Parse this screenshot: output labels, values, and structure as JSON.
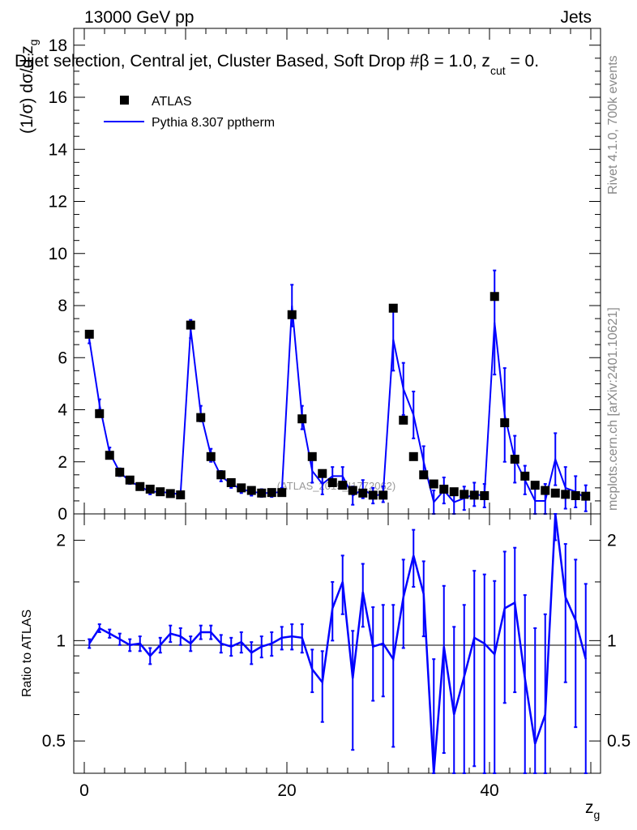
{
  "header": {
    "left": "13000 GeV pp",
    "right": "Jets",
    "selection": "Dijet selection, Central jet, Cluster Based, Soft Drop #beta = 1.0, z_cut = 0."
  },
  "side_labels": {
    "rivet": "Rivet 4.1.0,  700k events",
    "mcplots": "mcplots.cern.ch [arXiv:2401.10621]"
  },
  "watermark": "(ATLAS_2019_I1772062)",
  "axes": {
    "main_ylabel": "(1/σ) dσ/d z_g",
    "ratio_ylabel": "Ratio to ATLAS",
    "xlabel": "z_g"
  },
  "legend": [
    {
      "label": "ATLAS",
      "marker": "square",
      "color": "#000000"
    },
    {
      "label": "Pythia 8.307 pptherm",
      "marker": "line",
      "color": "#0000ff"
    }
  ],
  "chart_data": [
    {
      "type": "scatter+line",
      "panel": "main",
      "xlim": [
        -1,
        51
      ],
      "ylim": [
        0,
        18.8
      ],
      "x_ticks": [
        0,
        20,
        40
      ],
      "y_ticks": [
        0,
        2,
        4,
        6,
        8,
        10,
        12,
        14,
        16,
        18
      ],
      "x": [
        0.5,
        1.5,
        2.5,
        3.5,
        4.5,
        5.5,
        6.5,
        7.5,
        8.5,
        9.5,
        10.5,
        11.5,
        12.5,
        13.5,
        14.5,
        15.5,
        16.5,
        17.5,
        18.5,
        19.5,
        20.5,
        21.5,
        22.5,
        23.5,
        24.5,
        25.5,
        26.5,
        27.5,
        28.5,
        29.5,
        30.5,
        31.5,
        32.5,
        33.5,
        34.5,
        35.5,
        36.5,
        37.5,
        38.5,
        39.5,
        40.5,
        41.5,
        42.5,
        43.5,
        44.5,
        45.5,
        46.5,
        47.5,
        48.5,
        49.5
      ],
      "series": [
        {
          "name": "ATLAS",
          "color": "#000000",
          "values": [
            6.9,
            3.85,
            2.25,
            1.6,
            1.3,
            1.05,
            0.95,
            0.85,
            0.78,
            0.73,
            7.25,
            3.7,
            2.2,
            1.5,
            1.2,
            1.0,
            0.9,
            0.8,
            0.82,
            0.82,
            7.65,
            3.65,
            2.2,
            1.55,
            1.2,
            1.1,
            0.9,
            0.8,
            0.72,
            0.72,
            7.9,
            3.6,
            2.2,
            1.5,
            1.15,
            0.95,
            0.85,
            0.75,
            0.72,
            0.7,
            8.35,
            3.5,
            2.1,
            1.45,
            1.1,
            0.9,
            0.8,
            0.75,
            0.7,
            0.68
          ]
        },
        {
          "name": "Pythia 8.307 pptherm",
          "color": "#0000ff",
          "values": [
            6.7,
            4.2,
            2.35,
            1.6,
            1.25,
            1.05,
            0.85,
            0.85,
            0.8,
            0.75,
            7.1,
            3.85,
            2.25,
            1.45,
            1.15,
            0.95,
            0.85,
            0.8,
            0.8,
            0.85,
            8.0,
            3.7,
            1.65,
            1.15,
            1.45,
            1.45,
            0.7,
            0.95,
            0.7,
            0.75,
            6.7,
            4.8,
            3.8,
            2.0,
            0.45,
            0.9,
            0.45,
            0.6,
            0.75,
            0.7,
            7.35,
            3.8,
            2.1,
            1.3,
            0.5,
            0.5,
            2.1,
            1.0,
            0.85,
            0.6
          ],
          "errors": [
            0.15,
            0.2,
            0.2,
            0.15,
            0.1,
            0.1,
            0.1,
            0.1,
            0.1,
            0.1,
            0.35,
            0.3,
            0.25,
            0.2,
            0.15,
            0.15,
            0.15,
            0.15,
            0.15,
            0.15,
            0.8,
            0.45,
            0.45,
            0.4,
            0.35,
            0.35,
            0.35,
            0.35,
            0.3,
            0.3,
            1.2,
            1.0,
            0.9,
            0.6,
            0.45,
            0.5,
            0.45,
            0.45,
            0.45,
            0.45,
            2.0,
            1.8,
            0.9,
            0.55,
            0.6,
            0.65,
            1.0,
            0.8,
            0.6,
            0.5
          ]
        }
      ]
    },
    {
      "type": "line",
      "panel": "ratio",
      "ylim": [
        0.4,
        2.4
      ],
      "scale": "log",
      "y_ticks": [
        0.5,
        1,
        2
      ],
      "y_tick_labels": [
        "0.5",
        "1",
        "2"
      ],
      "x": [
        0.5,
        1.5,
        2.5,
        3.5,
        4.5,
        5.5,
        6.5,
        7.5,
        8.5,
        9.5,
        10.5,
        11.5,
        12.5,
        13.5,
        14.5,
        15.5,
        16.5,
        17.5,
        18.5,
        19.5,
        20.5,
        21.5,
        22.5,
        23.5,
        24.5,
        25.5,
        26.5,
        27.5,
        28.5,
        29.5,
        30.5,
        31.5,
        32.5,
        33.5,
        34.5,
        35.5,
        36.5,
        37.5,
        38.5,
        39.5,
        40.5,
        41.5,
        42.5,
        43.5,
        44.5,
        45.5,
        46.5,
        47.5,
        48.5,
        49.5
      ],
      "series": [
        {
          "name": "Pythia 8.307 pptherm / ATLAS",
          "color": "#0000ff",
          "values": [
            0.98,
            1.09,
            1.05,
            1.01,
            0.97,
            0.98,
            0.9,
            0.97,
            1.05,
            1.03,
            0.98,
            1.06,
            1.06,
            0.98,
            0.96,
            0.99,
            0.92,
            0.96,
            0.98,
            1.02,
            1.03,
            1.02,
            0.82,
            0.75,
            1.25,
            1.5,
            0.77,
            1.4,
            0.96,
            0.98,
            0.88,
            1.35,
            1.8,
            1.38,
            0.38,
            0.96,
            0.6,
            0.78,
            1.02,
            0.98,
            0.91,
            1.25,
            1.3,
            0.77,
            0.49,
            0.6,
            2.6,
            1.35,
            1.15,
            0.88
          ],
          "errors": [
            0.03,
            0.03,
            0.03,
            0.04,
            0.04,
            0.05,
            0.05,
            0.05,
            0.06,
            0.06,
            0.05,
            0.05,
            0.05,
            0.06,
            0.06,
            0.07,
            0.07,
            0.07,
            0.08,
            0.08,
            0.09,
            0.1,
            0.12,
            0.18,
            0.25,
            0.3,
            0.3,
            0.3,
            0.3,
            0.3,
            0.4,
            0.4,
            0.35,
            0.35,
            0.5,
            0.5,
            0.5,
            0.5,
            0.6,
            0.6,
            0.6,
            0.6,
            0.6,
            0.6,
            0.6,
            0.6,
            0.6,
            0.6,
            0.6,
            0.6
          ]
        }
      ]
    }
  ]
}
